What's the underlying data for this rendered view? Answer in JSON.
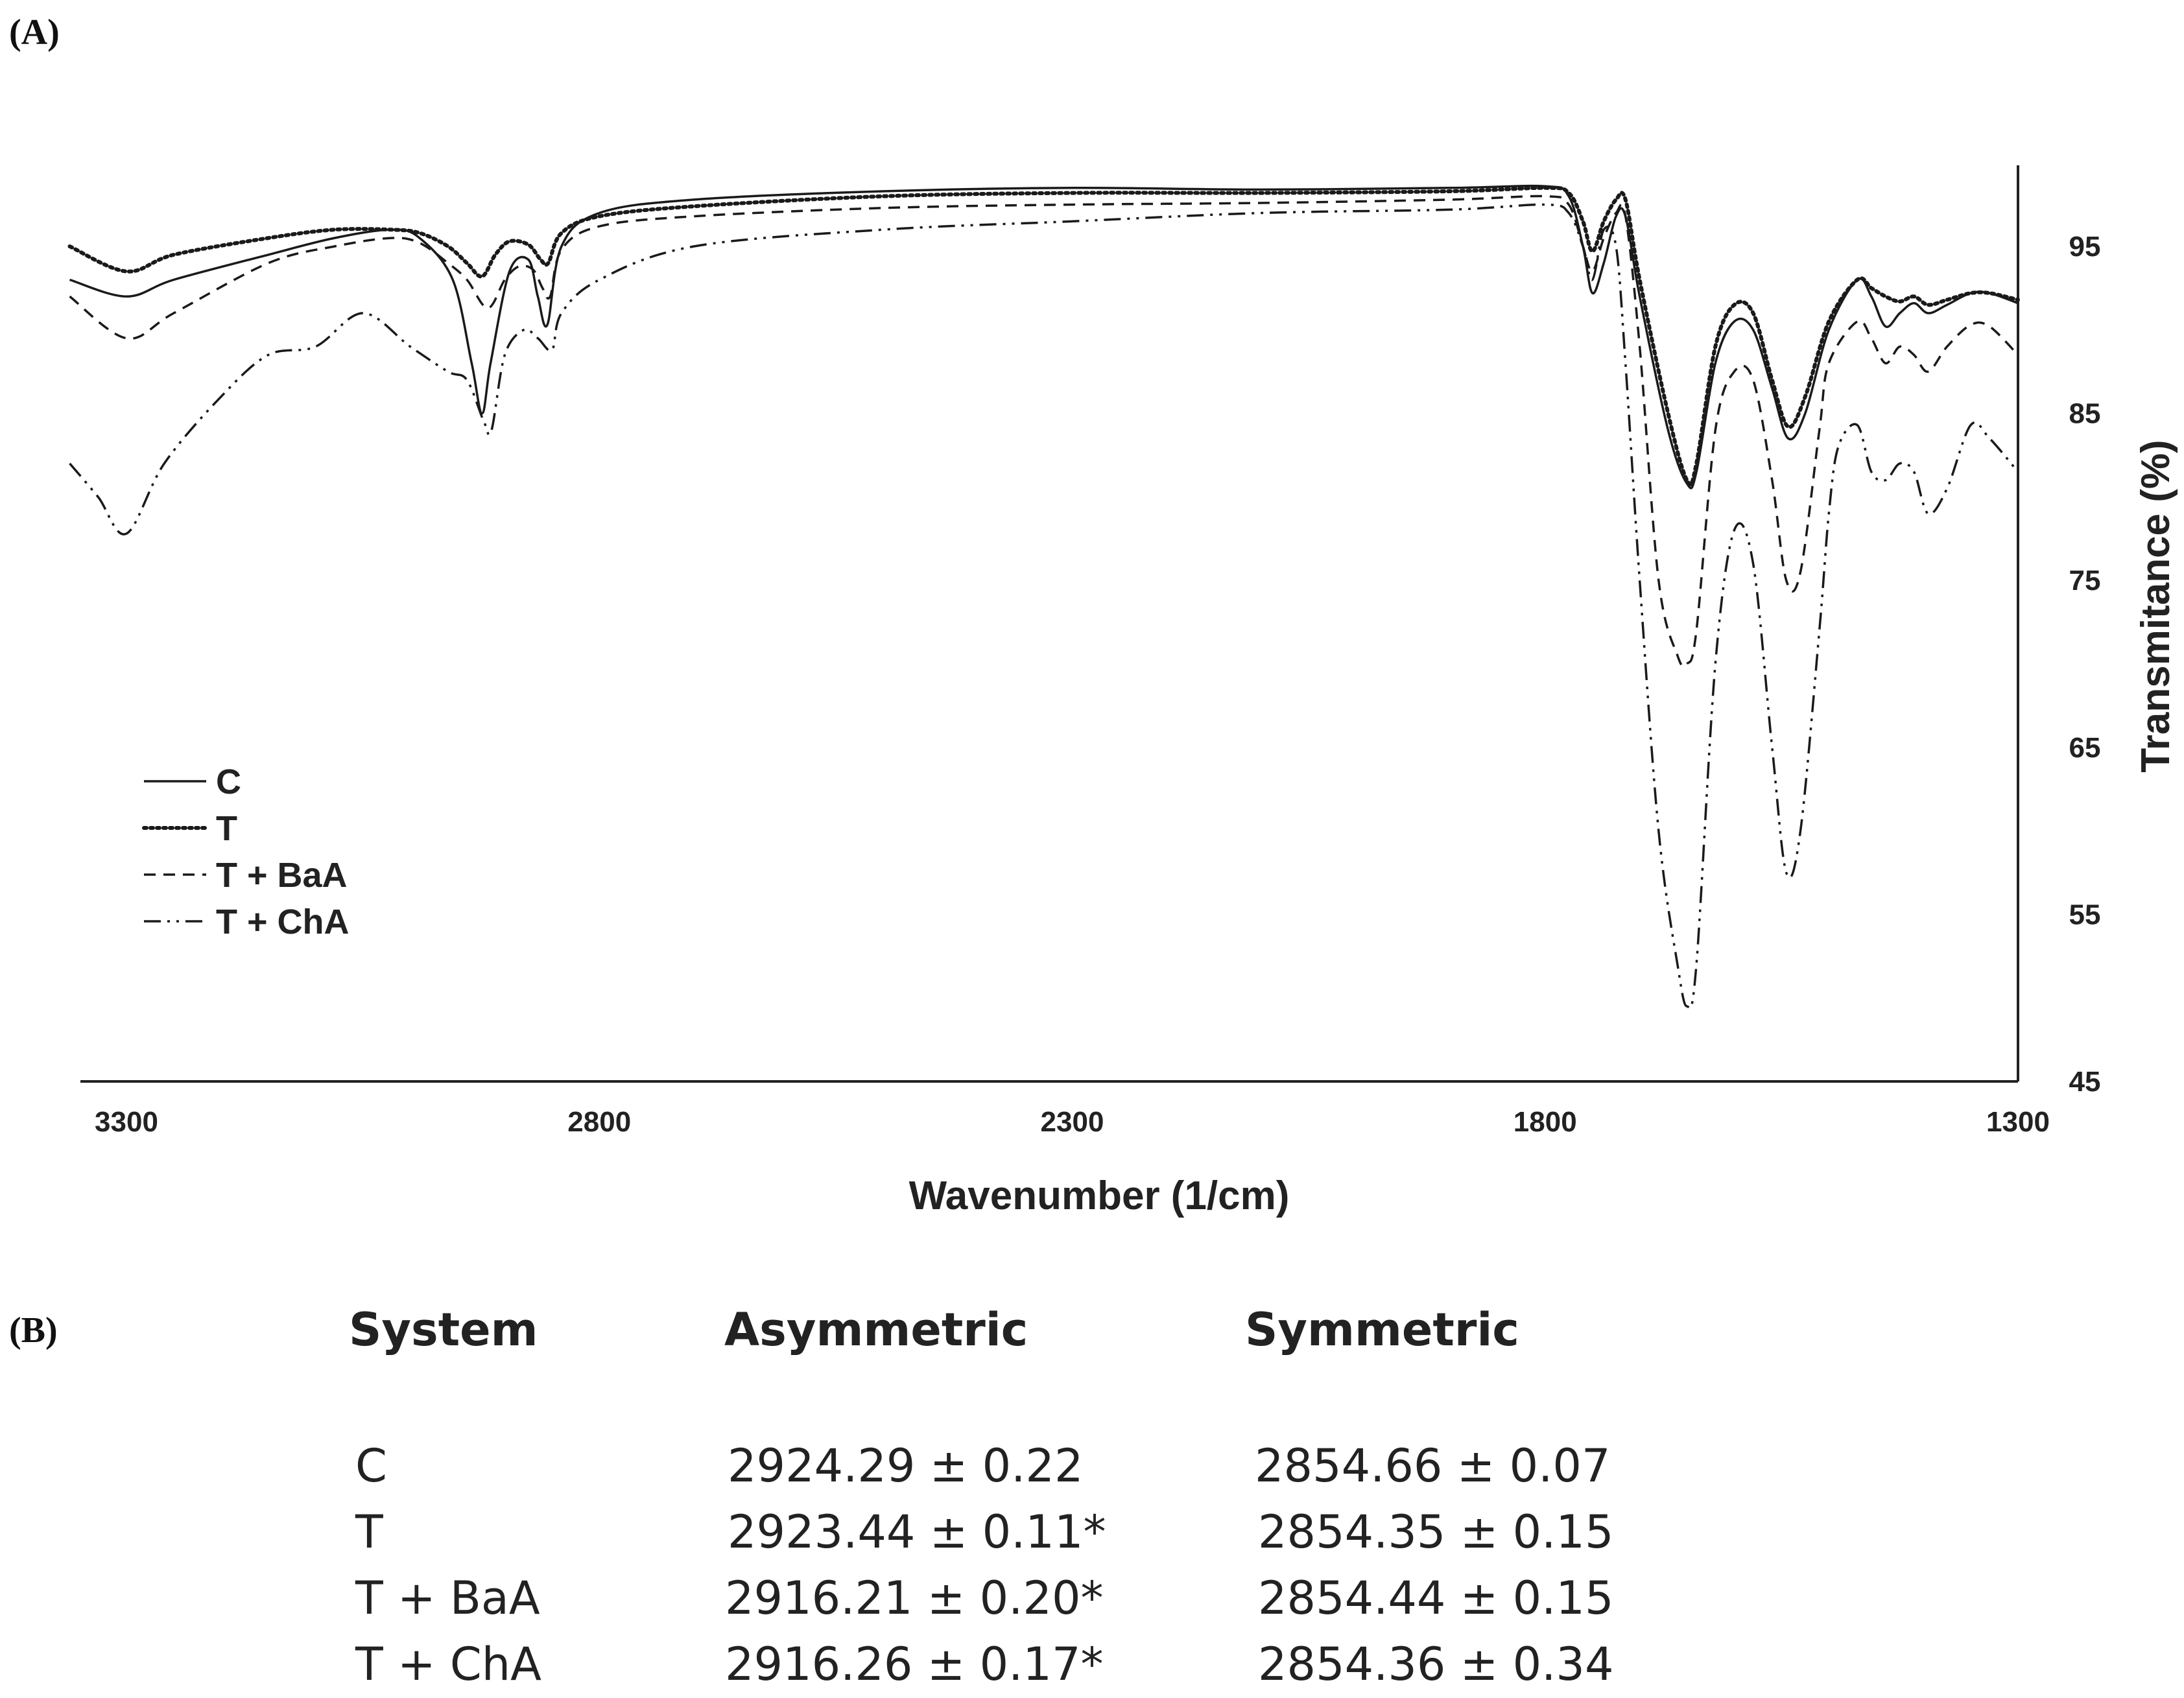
{
  "panel_a_label": "(A)",
  "panel_b_label": "(B)",
  "chart_data": {
    "type": "line",
    "xlabel": "Wavenumber (1/cm)",
    "ylabel": "Transmitance (%)",
    "xlim": [
      3300,
      1300
    ],
    "x_reversed": true,
    "ylim": [
      45,
      100
    ],
    "x_ticks": [
      "3300",
      "2800",
      "2300",
      "1800",
      "1300"
    ],
    "y_ticks": [
      "95",
      "85",
      "75",
      "65",
      "55",
      "45"
    ],
    "legend_position": "bottom-left",
    "grid": false,
    "series": [
      {
        "name": "C",
        "line_style": "solid",
        "color": "#1a1a1a",
        "x": [
          3360,
          3300,
          3250,
          3150,
          3080,
          3020,
          2990,
          2955,
          2935,
          2924,
          2915,
          2895,
          2875,
          2865,
          2855,
          2840,
          2800,
          2700,
          2500,
          2300,
          2100,
          1900,
          1800,
          1775,
          1760,
          1750,
          1738,
          1725,
          1715,
          1700,
          1670,
          1650,
          1640,
          1620,
          1600,
          1580,
          1560,
          1543,
          1525,
          1500,
          1470,
          1455,
          1440,
          1425,
          1410,
          1395,
          1375,
          1350,
          1330,
          1300
        ],
        "y": [
          93,
          92,
          93,
          94.5,
          95.5,
          96,
          95.5,
          93,
          88,
          85,
          88,
          93.5,
          94.2,
          92,
          90.3,
          95,
          97,
          97.8,
          98.3,
          98.5,
          98.4,
          98.5,
          98.6,
          98,
          95,
          92.2,
          94,
          96.8,
          96.8,
          92,
          84,
          80.8,
          81.5,
          88,
          90.5,
          90,
          86.5,
          83.5,
          85,
          90,
          93,
          92,
          90.2,
          91,
          91.6,
          91,
          91.5,
          92.2,
          92.2,
          91.6
        ]
      },
      {
        "name": "T",
        "line_style": "dotted",
        "color": "#1a1a1a",
        "x": [
          3360,
          3300,
          3250,
          3150,
          3080,
          3020,
          2990,
          2960,
          2940,
          2924,
          2910,
          2895,
          2875,
          2862,
          2854,
          2840,
          2800,
          2700,
          2500,
          2300,
          2100,
          1900,
          1800,
          1775,
          1760,
          1750,
          1738,
          1725,
          1715,
          1700,
          1670,
          1650,
          1640,
          1620,
          1600,
          1580,
          1560,
          1543,
          1525,
          1500,
          1470,
          1455,
          1440,
          1425,
          1410,
          1395,
          1375,
          1350,
          1330,
          1300
        ],
        "y": [
          95,
          93.5,
          94.5,
          95.5,
          96,
          96,
          95.8,
          95,
          94,
          93.2,
          94.5,
          95.3,
          95.1,
          94.2,
          94,
          95.8,
          96.8,
          97.4,
          98,
          98.2,
          98.2,
          98.3,
          98.5,
          98.2,
          96.5,
          94.7,
          96.5,
          97.8,
          97.8,
          93,
          85,
          81,
          82,
          89,
          91.5,
          91,
          87,
          84.2,
          86,
          90.5,
          93,
          92.5,
          92,
          91.7,
          92,
          91.5,
          91.8,
          92.2,
          92.2,
          91.8
        ]
      },
      {
        "name": "T + BaA",
        "line_style": "dashed",
        "color": "#1a1a1a",
        "x": [
          3360,
          3300,
          3250,
          3150,
          3080,
          3020,
          2990,
          2960,
          2940,
          2918,
          2900,
          2885,
          2870,
          2860,
          2852,
          2840,
          2800,
          2700,
          2500,
          2300,
          2100,
          1900,
          1800,
          1775,
          1760,
          1750,
          1738,
          1725,
          1715,
          1700,
          1680,
          1660,
          1650,
          1640,
          1620,
          1600,
          1580,
          1560,
          1545,
          1530,
          1510,
          1500,
          1470,
          1455,
          1440,
          1425,
          1410,
          1395,
          1375,
          1350,
          1330,
          1300
        ],
        "y": [
          92,
          89.5,
          91,
          94,
          95,
          95.5,
          95.2,
          94,
          93,
          91.3,
          93,
          93.8,
          93.6,
          92.5,
          92,
          94.8,
          96.2,
          96.8,
          97.3,
          97.5,
          97.6,
          97.8,
          98,
          97.5,
          95,
          93.5,
          95.5,
          97,
          96.8,
          89,
          75,
          70.5,
          70,
          72,
          84,
          87.5,
          87,
          81,
          75,
          75.5,
          84,
          88,
          90.5,
          89.5,
          88,
          89,
          88.5,
          87.5,
          89,
          90.3,
          90.2,
          88.5
        ]
      },
      {
        "name": "T + ChA",
        "line_style": "dash-dot-dot",
        "color": "#1a1a1a",
        "x": [
          3360,
          3330,
          3300,
          3260,
          3200,
          3150,
          3100,
          3050,
          3000,
          2960,
          2940,
          2922,
          2914,
          2900,
          2880,
          2865,
          2850,
          2840,
          2800,
          2700,
          2500,
          2300,
          2100,
          1900,
          1800,
          1775,
          1760,
          1750,
          1738,
          1725,
          1715,
          1700,
          1680,
          1660,
          1650,
          1640,
          1620,
          1600,
          1580,
          1560,
          1545,
          1530,
          1510,
          1500,
          1490,
          1470,
          1455,
          1440,
          1425,
          1410,
          1395,
          1375,
          1350,
          1330,
          1300
        ],
        "y": [
          82,
          80,
          77.8,
          82,
          86,
          88.5,
          89,
          91,
          89,
          87.5,
          87,
          84.5,
          84,
          88.5,
          90,
          89.5,
          88.8,
          91,
          93,
          95,
          96,
          96.5,
          97,
          97.2,
          97.5,
          97,
          95,
          93,
          96,
          95,
          88,
          75,
          60,
          52,
          49.5,
          52,
          70,
          78,
          76,
          65,
          57.5,
          60,
          72,
          79,
          83,
          84.3,
          81.5,
          81,
          82,
          81.5,
          79,
          80.5,
          84.3,
          83.5,
          81.5
        ]
      }
    ]
  },
  "table_b": {
    "headers": [
      "System",
      "Asymmetric",
      "Symmetric"
    ],
    "rows": [
      [
        "C",
        "2924.29 ± 0.22",
        "2854.66 ± 0.07"
      ],
      [
        "T",
        "2923.44 ± 0.11*",
        "2854.35 ± 0.15"
      ],
      [
        "T + BaA",
        "2916.21 ± 0.20*",
        "2854.44 ± 0.15"
      ],
      [
        "T + ChA",
        "2916.26 ± 0.17*",
        "2854.36 ± 0.34"
      ]
    ]
  }
}
